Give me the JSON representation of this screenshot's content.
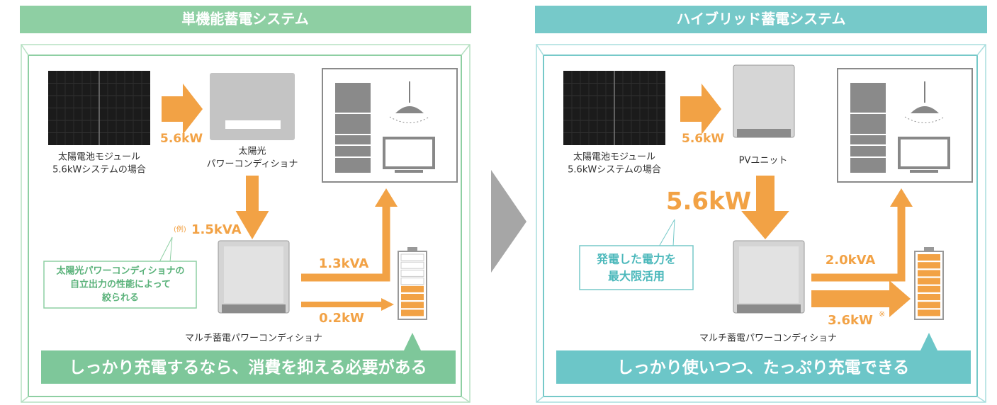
{
  "left": {
    "title": "単機能蓄電システム",
    "solar_label": [
      "太陽電池モジュール",
      "5.6kWシステムの場合"
    ],
    "inverter_label": [
      "太陽光",
      "パワーコンディショナ"
    ],
    "output": "5.6kW",
    "example_prefix": "(例)",
    "limited_output": "1.5kVA",
    "callout": [
      "太陽光パワーコンディショナの",
      "自立出力の性能によって",
      "絞られる"
    ],
    "consumption": "1.3kVA",
    "charge": "0.2kW",
    "multi_label": "マルチ蓄電パワーコンディショナ",
    "banner": "しっかり充電するなら、消費を抑える必要がある"
  },
  "right": {
    "title": "ハイブリッド蓄電システム",
    "solar_label": [
      "太陽電池モジュール",
      "5.6kWシステムの場合"
    ],
    "pv_label": "PVユニット",
    "output": "5.6kW",
    "big_output": "5.6kW",
    "callout": [
      "発電した電力を",
      "最大限活用"
    ],
    "consumption": "2.0kVA",
    "charge": "3.6kW",
    "charge_note": "※",
    "multi_label": "マルチ蓄電パワーコンディショナ",
    "banner": "しっかり使いつつ、たっぷり充電できる"
  }
}
